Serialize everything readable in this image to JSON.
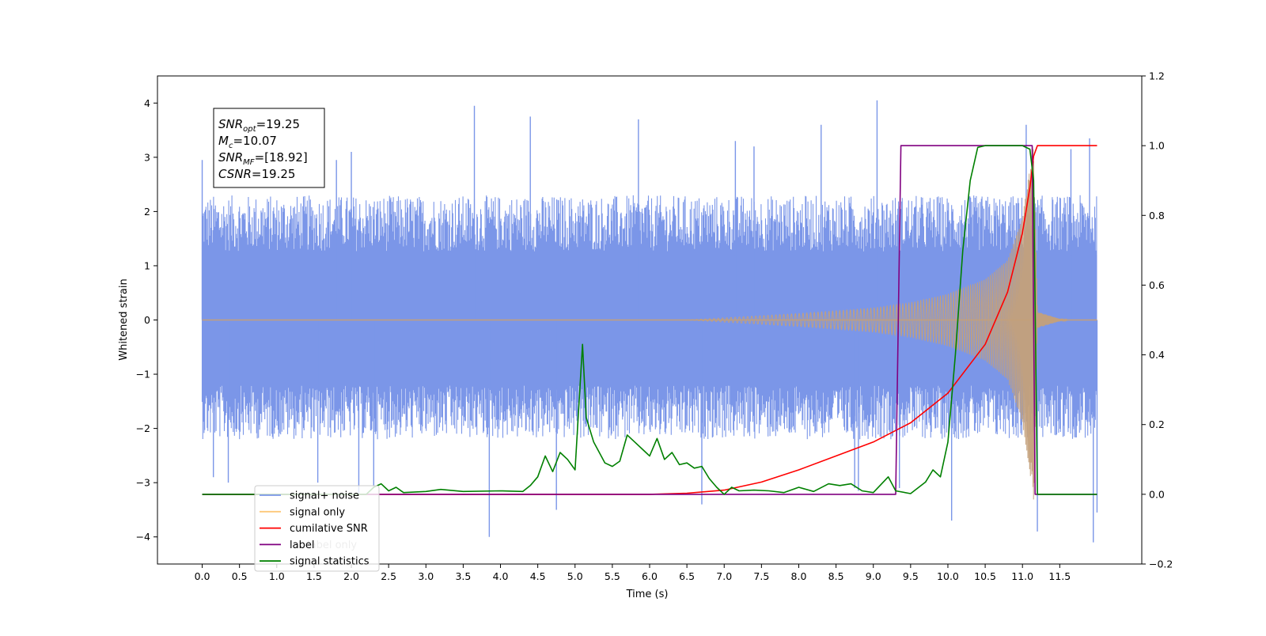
{
  "chart_data": {
    "type": "line",
    "xlabel": "Time (s)",
    "ylabel": "Whitened strain",
    "xlim": [
      -0.6,
      12.6
    ],
    "ylim_left": [
      -4.5,
      4.5
    ],
    "ylim_right": [
      -0.2,
      1.2
    ],
    "x_ticks": [
      "0.0",
      "0.5",
      "1.0",
      "1.5",
      "2.0",
      "2.5",
      "3.0",
      "3.5",
      "4.0",
      "4.5",
      "5.0",
      "5.5",
      "6.0",
      "6.5",
      "7.0",
      "7.5",
      "8.0",
      "8.5",
      "9.0",
      "9.5",
      "10.0",
      "10.5",
      "11.0",
      "11.5"
    ],
    "y_ticks_left": [
      "−4",
      "−3",
      "−2",
      "−1",
      "0",
      "1",
      "2",
      "3",
      "4"
    ],
    "y_ticks_right": [
      "−0.2",
      "0.0",
      "0.2",
      "0.4",
      "0.6",
      "0.8",
      "1.0",
      "1.2"
    ],
    "annotation": {
      "lines": [
        {
          "base": "SNR",
          "sub": "opt",
          "value": "=19.25"
        },
        {
          "base": "M",
          "sub": "c",
          "value": "=10.07"
        },
        {
          "base": "SNR",
          "sub": "MF",
          "value": "=[18.92]"
        },
        {
          "base": "CSNR",
          "sub": "",
          "value": "=19.25"
        }
      ]
    },
    "legend": {
      "placement": "lower-left",
      "entries": [
        {
          "label": "signal+ noise",
          "color": "#7b96e8"
        },
        {
          "label": "signal only",
          "color": "#fdc879"
        },
        {
          "label": "cumilative SNR",
          "color": "#ff0000"
        },
        {
          "label": "label",
          "color": "#800080"
        },
        {
          "label": "signal statistics",
          "color": "#008000"
        }
      ],
      "behind_text": [
        "label only"
      ]
    },
    "series": [
      {
        "name": "signal+ noise",
        "axis": "left",
        "color": "#7b96e8",
        "kind": "noise",
        "x_range": [
          0.0,
          12.0
        ],
        "band_low": -2.2,
        "band_high": 2.3,
        "spikes": [
          {
            "x": 0.0,
            "y": 2.95
          },
          {
            "x": 0.02,
            "y": -1.25
          },
          {
            "x": 0.15,
            "y": -2.9
          },
          {
            "x": 0.35,
            "y": -3.0
          },
          {
            "x": 1.55,
            "y": -3.0
          },
          {
            "x": 1.8,
            "y": 2.95
          },
          {
            "x": 2.0,
            "y": 3.1
          },
          {
            "x": 2.1,
            "y": -3.2
          },
          {
            "x": 2.3,
            "y": -3.1
          },
          {
            "x": 3.65,
            "y": 3.95
          },
          {
            "x": 3.85,
            "y": -4.0
          },
          {
            "x": 4.4,
            "y": 3.75
          },
          {
            "x": 4.75,
            "y": -3.5
          },
          {
            "x": 5.85,
            "y": 3.7
          },
          {
            "x": 6.7,
            "y": -3.4
          },
          {
            "x": 7.15,
            "y": 3.3
          },
          {
            "x": 7.4,
            "y": 3.2
          },
          {
            "x": 8.3,
            "y": 3.6
          },
          {
            "x": 8.75,
            "y": -3.1
          },
          {
            "x": 8.8,
            "y": -3.15
          },
          {
            "x": 9.05,
            "y": 4.05
          },
          {
            "x": 9.35,
            "y": -3.1
          },
          {
            "x": 10.05,
            "y": -3.7
          },
          {
            "x": 11.05,
            "y": 3.6
          },
          {
            "x": 11.2,
            "y": -3.9
          },
          {
            "x": 11.65,
            "y": 3.15
          },
          {
            "x": 11.9,
            "y": 3.35
          },
          {
            "x": 11.95,
            "y": -4.1
          },
          {
            "x": 12.0,
            "y": -3.55
          }
        ]
      },
      {
        "name": "signal only",
        "axis": "left",
        "color": "#c4a07a",
        "kind": "chirp",
        "x_range": [
          0.0,
          12.0
        ],
        "merger_x": 11.15,
        "amplitude_at": [
          {
            "x": 6.5,
            "y": 0.0
          },
          {
            "x": 7.0,
            "y": 0.04
          },
          {
            "x": 8.0,
            "y": 0.12
          },
          {
            "x": 9.0,
            "y": 0.22
          },
          {
            "x": 9.5,
            "y": 0.32
          },
          {
            "x": 10.0,
            "y": 0.48
          },
          {
            "x": 10.5,
            "y": 0.75
          },
          {
            "x": 10.8,
            "y": 1.1
          },
          {
            "x": 11.0,
            "y": 1.9
          },
          {
            "x": 11.1,
            "y": 2.8
          },
          {
            "x": 11.15,
            "y": 3.4
          },
          {
            "x": 11.2,
            "y": 0.15
          },
          {
            "x": 11.5,
            "y": 0.02
          },
          {
            "x": 12.0,
            "y": 0.0
          }
        ]
      },
      {
        "name": "cumilative SNR",
        "axis": "right",
        "color": "#ff0000",
        "kind": "line",
        "points": [
          [
            0.0,
            0.0
          ],
          [
            6.0,
            0.0
          ],
          [
            6.5,
            0.003
          ],
          [
            7.0,
            0.012
          ],
          [
            7.5,
            0.035
          ],
          [
            8.0,
            0.07
          ],
          [
            8.5,
            0.11
          ],
          [
            9.0,
            0.15
          ],
          [
            9.5,
            0.205
          ],
          [
            10.0,
            0.29
          ],
          [
            10.5,
            0.43
          ],
          [
            10.8,
            0.58
          ],
          [
            11.0,
            0.75
          ],
          [
            11.1,
            0.88
          ],
          [
            11.15,
            0.97
          ],
          [
            11.2,
            1.0
          ],
          [
            12.0,
            1.0
          ]
        ]
      },
      {
        "name": "label",
        "axis": "right",
        "color": "#800080",
        "kind": "line",
        "points": [
          [
            0.0,
            0.0
          ],
          [
            9.3,
            0.0
          ],
          [
            9.37,
            1.0
          ],
          [
            11.13,
            1.0
          ],
          [
            11.17,
            0.0
          ],
          [
            12.0,
            0.0
          ]
        ]
      },
      {
        "name": "signal statistics",
        "axis": "right",
        "color": "#008000",
        "kind": "line",
        "points": [
          [
            0.0,
            0.0
          ],
          [
            2.2,
            0.0
          ],
          [
            2.3,
            0.02
          ],
          [
            2.4,
            0.03
          ],
          [
            2.5,
            0.01
          ],
          [
            2.6,
            0.02
          ],
          [
            2.7,
            0.005
          ],
          [
            3.0,
            0.008
          ],
          [
            3.2,
            0.014
          ],
          [
            3.5,
            0.008
          ],
          [
            4.0,
            0.01
          ],
          [
            4.3,
            0.008
          ],
          [
            4.4,
            0.025
          ],
          [
            4.5,
            0.05
          ],
          [
            4.6,
            0.11
          ],
          [
            4.7,
            0.065
          ],
          [
            4.8,
            0.12
          ],
          [
            4.9,
            0.1
          ],
          [
            5.0,
            0.07
          ],
          [
            5.1,
            0.43
          ],
          [
            5.15,
            0.22
          ],
          [
            5.25,
            0.15
          ],
          [
            5.4,
            0.09
          ],
          [
            5.5,
            0.08
          ],
          [
            5.6,
            0.095
          ],
          [
            5.7,
            0.17
          ],
          [
            5.8,
            0.15
          ],
          [
            5.95,
            0.12
          ],
          [
            6.0,
            0.11
          ],
          [
            6.1,
            0.16
          ],
          [
            6.2,
            0.1
          ],
          [
            6.3,
            0.12
          ],
          [
            6.4,
            0.085
          ],
          [
            6.5,
            0.09
          ],
          [
            6.6,
            0.075
          ],
          [
            6.7,
            0.08
          ],
          [
            6.8,
            0.045
          ],
          [
            6.9,
            0.02
          ],
          [
            7.0,
            0.0
          ],
          [
            7.1,
            0.02
          ],
          [
            7.2,
            0.01
          ],
          [
            7.4,
            0.012
          ],
          [
            7.6,
            0.01
          ],
          [
            7.8,
            0.005
          ],
          [
            8.0,
            0.02
          ],
          [
            8.2,
            0.008
          ],
          [
            8.4,
            0.03
          ],
          [
            8.55,
            0.025
          ],
          [
            8.7,
            0.03
          ],
          [
            8.85,
            0.01
          ],
          [
            9.0,
            0.005
          ],
          [
            9.2,
            0.05
          ],
          [
            9.3,
            0.01
          ],
          [
            9.5,
            0.002
          ],
          [
            9.7,
            0.035
          ],
          [
            9.8,
            0.07
          ],
          [
            9.9,
            0.05
          ],
          [
            10.0,
            0.15
          ],
          [
            10.1,
            0.4
          ],
          [
            10.2,
            0.7
          ],
          [
            10.3,
            0.9
          ],
          [
            10.4,
            0.995
          ],
          [
            10.5,
            1.0
          ],
          [
            11.0,
            1.0
          ],
          [
            11.1,
            0.99
          ],
          [
            11.15,
            0.9
          ],
          [
            11.2,
            0.0
          ],
          [
            12.0,
            0.0
          ]
        ]
      }
    ]
  }
}
